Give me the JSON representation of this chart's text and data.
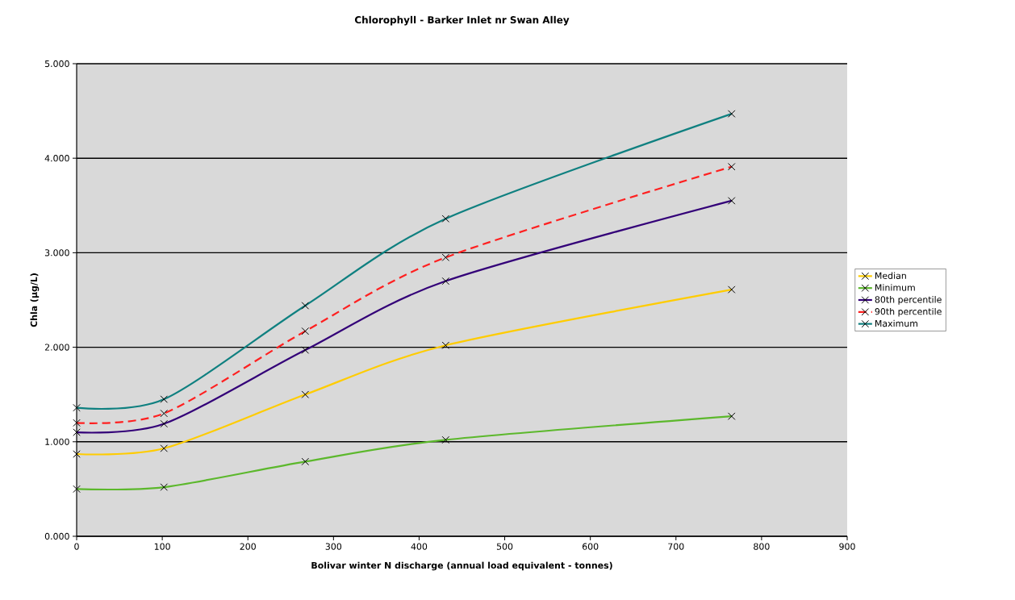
{
  "chart_data": {
    "type": "line",
    "title": "Chlorophyll - Barker Inlet nr Swan Alley",
    "xlabel": "Bolivar winter N discharge (annual load equivalent - tonnes)",
    "ylabel": "Chla (μg/L)",
    "x": [
      0,
      102,
      267,
      431,
      765
    ],
    "series": [
      {
        "name": "Median",
        "color": "#ffcc00",
        "values": [
          0.87,
          0.93,
          1.5,
          2.02,
          2.61
        ]
      },
      {
        "name": "Minimum",
        "color": "#5cb82c",
        "values": [
          0.5,
          0.52,
          0.79,
          1.02,
          1.27
        ]
      },
      {
        "name": "80th percentile",
        "color": "#330078",
        "values": [
          1.1,
          1.19,
          1.97,
          2.7,
          3.55
        ]
      },
      {
        "name": "90th percentile",
        "color": "#ff2020",
        "values": [
          1.2,
          1.3,
          2.17,
          2.95,
          3.91
        ],
        "line_style": "dashed"
      },
      {
        "name": "Maximum",
        "color": "#0f8080",
        "values": [
          1.36,
          1.45,
          2.44,
          3.36,
          4.47
        ]
      }
    ],
    "xlim": [
      0,
      900
    ],
    "xticks": [
      0,
      100,
      200,
      300,
      400,
      500,
      600,
      700,
      800,
      900
    ],
    "ylim": [
      0,
      5
    ],
    "yticks": [
      {
        "value": 0,
        "label": "0.000"
      },
      {
        "value": 1,
        "label": "1.000"
      },
      {
        "value": 2,
        "label": "2.000"
      },
      {
        "value": 3,
        "label": "3.000"
      },
      {
        "value": 4,
        "label": "4.000"
      },
      {
        "value": 5,
        "label": "5.000"
      }
    ],
    "grid": "y",
    "legend": "right",
    "marker": "cross",
    "line_style": "solid"
  }
}
